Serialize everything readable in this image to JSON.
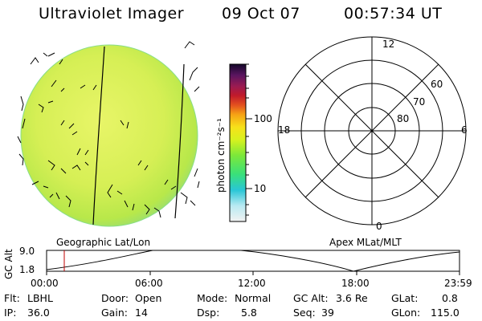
{
  "header": {
    "instrument": "Ultraviolet Imager",
    "date": "09 Oct 07",
    "time": "00:57:34 UT"
  },
  "colorbar": {
    "label": "photon cm⁻²s⁻¹",
    "ticks": [
      "100",
      "10"
    ]
  },
  "globe": {
    "label": "Geographic Lat/Lon"
  },
  "polar": {
    "label": "Apex MLat/MLT",
    "mlt_labels": [
      "12",
      "18",
      "6",
      "0"
    ],
    "lat_labels": [
      "60",
      "70",
      "80"
    ]
  },
  "altitude_plot": {
    "ylabel": "GC Alt",
    "yticks": [
      "9.0",
      "1.8"
    ],
    "xticks": [
      "00:00",
      "06:00",
      "12:00",
      "18:00",
      "23:59"
    ]
  },
  "status": {
    "filter": {
      "label": "Flt:",
      "value": "LBHL"
    },
    "ip": {
      "label": "IP:",
      "value": "36.0"
    },
    "door": {
      "label": "Door:",
      "value": "Open"
    },
    "gain": {
      "label": "Gain:",
      "value": "14"
    },
    "mode": {
      "label": "Mode:",
      "value": "Normal"
    },
    "dsp": {
      "label": "Dsp:",
      "value": "5.8"
    },
    "gc_alt": {
      "label": "GC Alt:",
      "value": "3.6 Re"
    },
    "seq": {
      "label": "Seq:",
      "value": "39"
    },
    "glat": {
      "label": "GLat:",
      "value": "0.8"
    },
    "glon": {
      "label": "GLon:",
      "value": "115.0"
    }
  }
}
